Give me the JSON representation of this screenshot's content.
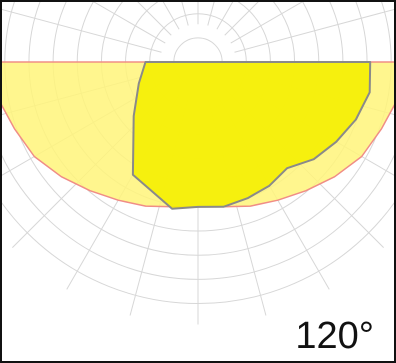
{
  "chart_data": {
    "type": "polar-area",
    "beam_angle_label": "120°",
    "grid": true,
    "radial_rings": 10,
    "angular_step_deg": 15,
    "series": [
      {
        "name": "",
        "color": "#fff47a",
        "stroke": "#f08d86",
        "points": [
          [
            -90,
            0.98
          ],
          [
            -80,
            0.97
          ],
          [
            -70,
            0.93
          ],
          [
            -60,
            0.9
          ],
          [
            -50,
            0.85
          ],
          [
            -40,
            0.8
          ],
          [
            -30,
            0.76
          ],
          [
            -20,
            0.73
          ],
          [
            -10,
            0.7
          ],
          [
            0,
            0.69
          ],
          [
            10,
            0.7
          ],
          [
            20,
            0.73
          ],
          [
            30,
            0.76
          ],
          [
            40,
            0.8
          ],
          [
            50,
            0.85
          ],
          [
            60,
            0.9
          ],
          [
            70,
            0.93
          ],
          [
            80,
            0.97
          ],
          [
            90,
            0.98
          ]
        ]
      },
      {
        "name": "",
        "color": "#f5f000",
        "stroke": "#8a8a8a",
        "points": [
          [
            -90,
            0.25
          ],
          [
            -70,
            0.3
          ],
          [
            -50,
            0.4
          ],
          [
            -30,
            0.62
          ],
          [
            -10,
            0.71
          ],
          [
            0,
            0.69
          ],
          [
            10,
            0.7
          ],
          [
            20,
            0.69
          ],
          [
            30,
            0.68
          ],
          [
            40,
            0.66
          ],
          [
            50,
            0.72
          ],
          [
            60,
            0.76
          ],
          [
            70,
            0.8
          ],
          [
            80,
            0.83
          ],
          [
            90,
            0.82
          ]
        ]
      }
    ]
  }
}
